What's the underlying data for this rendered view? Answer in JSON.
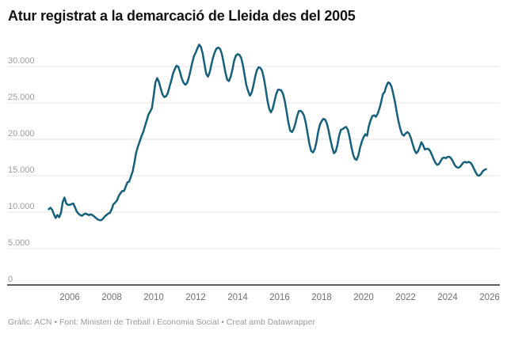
{
  "title": "Atur registrat a la demarcació de Lleida des del 2005",
  "footer": {
    "text": "Gràfic: ACN • Font: Ministeri de Treball i Economia Social  • Creat amb Datawrapper"
  },
  "chart_data": {
    "type": "line",
    "title": "Atur registrat a la demarcació de Lleida des del 2005",
    "x_start": "2005-01",
    "frequency": "monthly",
    "x_tick_labels": [
      "2006",
      "2008",
      "2010",
      "2012",
      "2014",
      "2016",
      "2018",
      "2020",
      "2022",
      "2024",
      "2026"
    ],
    "x_tick_years": [
      2006,
      2008,
      2010,
      2012,
      2014,
      2016,
      2018,
      2020,
      2022,
      2024,
      2026
    ],
    "y_tick_labels": [
      "0",
      "5.000",
      "10.000",
      "15.000",
      "20.000",
      "25.000",
      "30.000"
    ],
    "y_tick_values": [
      0,
      5000,
      10000,
      15000,
      20000,
      25000,
      30000
    ],
    "ylim": [
      0,
      33500
    ],
    "xlim_years": [
      2005,
      2026.2
    ],
    "grid": "horizontal",
    "legend": "none",
    "line_color": "#16607c",
    "series": [
      {
        "name": "Atur registrat",
        "values": [
          10400,
          10600,
          10300,
          9700,
          9200,
          9600,
          9300,
          9900,
          11400,
          12000,
          11200,
          11000,
          11000,
          11100,
          11200,
          10700,
          10100,
          9800,
          9600,
          9500,
          9700,
          9800,
          9700,
          9600,
          9700,
          9600,
          9400,
          9200,
          9000,
          8900,
          8900,
          9100,
          9400,
          9600,
          9800,
          9900,
          10400,
          11100,
          11300,
          11600,
          12200,
          12600,
          12900,
          12900,
          13500,
          14100,
          14200,
          14900,
          15600,
          16800,
          18200,
          19000,
          19700,
          20400,
          21000,
          21800,
          22600,
          23400,
          23800,
          24300,
          26000,
          27800,
          28400,
          27900,
          27000,
          26200,
          25800,
          25900,
          26300,
          27200,
          28000,
          29000,
          29600,
          30100,
          30000,
          29300,
          28400,
          27800,
          27500,
          27700,
          28400,
          29400,
          30500,
          31400,
          31900,
          32500,
          33000,
          32700,
          31800,
          30400,
          29000,
          28600,
          29200,
          30300,
          31300,
          32000,
          32500,
          32600,
          32400,
          31700,
          30500,
          29200,
          28200,
          28000,
          28600,
          29600,
          30800,
          31500,
          31700,
          31600,
          31200,
          30200,
          28800,
          27400,
          26600,
          26000,
          26400,
          27400,
          28600,
          29500,
          29900,
          29800,
          29400,
          28400,
          27000,
          25400,
          24200,
          23700,
          24200,
          25200,
          26200,
          26800,
          26800,
          26700,
          26200,
          25200,
          23800,
          22300,
          21200,
          21000,
          21400,
          22200,
          23200,
          23900,
          23900,
          23700,
          23200,
          22200,
          20800,
          19400,
          18400,
          18200,
          18600,
          19600,
          21000,
          22000,
          22500,
          22800,
          22700,
          22200,
          21200,
          20000,
          18900,
          18100,
          18300,
          19200,
          20500,
          21300,
          21400,
          21600,
          21700,
          21300,
          20300,
          19000,
          17900,
          17300,
          17200,
          17800,
          18900,
          19700,
          20300,
          20700,
          20500,
          21800,
          22600,
          23200,
          23300,
          23100,
          23500,
          24200,
          25100,
          26200,
          26500,
          27300,
          27800,
          27700,
          27200,
          26200,
          25000,
          23600,
          22400,
          21400,
          20700,
          20500,
          20800,
          21000,
          20800,
          20200,
          19400,
          18600,
          18100,
          18300,
          18900,
          19600,
          19200,
          18600,
          18700,
          18700,
          18400,
          17900,
          17300,
          16800,
          16500,
          16600,
          17000,
          17400,
          17500,
          17400,
          17600,
          17600,
          17400,
          17000,
          16500,
          16200,
          16100,
          16200,
          16500,
          16800,
          16900,
          16800,
          16900,
          16800,
          16500,
          16000,
          15500,
          15100,
          15000,
          15200,
          15600,
          15800,
          15900
        ]
      }
    ]
  }
}
